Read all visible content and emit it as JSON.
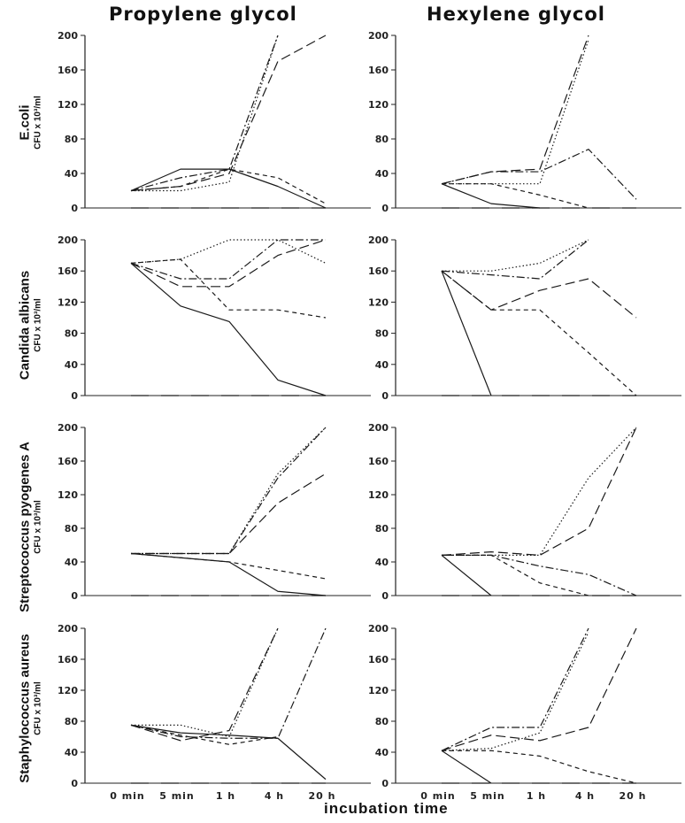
{
  "columns": [
    "Propylene glycol",
    "Hexylene glycol"
  ],
  "row_labels": [
    {
      "organism": "E.coli",
      "unit": "CFU x 10³/ml"
    },
    {
      "organism": "Candida albicans",
      "unit": "CFU x 10³/ml"
    },
    {
      "organism": "Streptococcus pyogenes A",
      "unit": "CFU x 10³/ml"
    },
    {
      "organism": "Staphylococcus aureus",
      "unit": "CFU x 10³/ml"
    }
  ],
  "xlabel": "incubation time",
  "chart_data": {
    "type": "line",
    "x_ticks": [
      "0 min",
      "5 min",
      "1 h",
      "4 h",
      "20 h"
    ],
    "y_ticks": [
      0,
      40,
      80,
      120,
      160,
      200
    ],
    "ylim": [
      0,
      200
    ],
    "panels": [
      {
        "row": "E.coli",
        "column": "Propylene glycol",
        "series": [
          {
            "style": "solid",
            "values": [
              20,
              45,
              45,
              25,
              0
            ]
          },
          {
            "style": "dash",
            "values": [
              20,
              25,
              40,
              170,
              200
            ]
          },
          {
            "style": "dashdot",
            "values": [
              20,
              35,
              45,
              200,
              null
            ]
          },
          {
            "style": "dot",
            "values": [
              20,
              20,
              30,
              200,
              null
            ]
          },
          {
            "style": "shortdash",
            "values": [
              20,
              25,
              45,
              35,
              5
            ]
          },
          {
            "style": "longdash",
            "values": [
              0,
              0,
              0,
              0,
              0
            ]
          }
        ]
      },
      {
        "row": "E.coli",
        "column": "Hexylene glycol",
        "series": [
          {
            "style": "solid",
            "values": [
              28,
              5,
              0,
              null,
              null
            ]
          },
          {
            "style": "dash",
            "values": [
              28,
              42,
              45,
              200,
              null
            ]
          },
          {
            "style": "dashdot",
            "values": [
              28,
              42,
              42,
              68,
              10
            ]
          },
          {
            "style": "dot",
            "values": [
              28,
              28,
              28,
              195,
              null
            ]
          },
          {
            "style": "shortdash",
            "values": [
              28,
              28,
              15,
              0,
              null
            ]
          },
          {
            "style": "longdash",
            "values": [
              0,
              0,
              0,
              0,
              0
            ]
          }
        ]
      },
      {
        "row": "Candida albicans",
        "column": "Propylene glycol",
        "series": [
          {
            "style": "solid",
            "values": [
              170,
              115,
              95,
              20,
              0
            ]
          },
          {
            "style": "dash",
            "values": [
              170,
              140,
              140,
              180,
              200
            ]
          },
          {
            "style": "dashdot",
            "values": [
              170,
              150,
              150,
              200,
              200
            ]
          },
          {
            "style": "dot",
            "values": [
              170,
              175,
              200,
              200,
              170
            ]
          },
          {
            "style": "shortdash",
            "values": [
              170,
              175,
              110,
              110,
              100
            ]
          },
          {
            "style": "longdash",
            "values": [
              0,
              0,
              0,
              0,
              0
            ]
          }
        ]
      },
      {
        "row": "Candida albicans",
        "column": "Hexylene glycol",
        "series": [
          {
            "style": "solid",
            "values": [
              160,
              0,
              null,
              null,
              null
            ]
          },
          {
            "style": "dash",
            "values": [
              160,
              110,
              135,
              150,
              100
            ]
          },
          {
            "style": "dashdot",
            "values": [
              160,
              155,
              150,
              200,
              null
            ]
          },
          {
            "style": "dot",
            "values": [
              160,
              160,
              170,
              200,
              null
            ]
          },
          {
            "style": "shortdash",
            "values": [
              160,
              110,
              110,
              55,
              0
            ]
          },
          {
            "style": "longdash",
            "values": [
              0,
              0,
              0,
              0,
              0
            ]
          }
        ]
      },
      {
        "row": "Streptococcus pyogenes A",
        "column": "Propylene glycol",
        "series": [
          {
            "style": "solid",
            "values": [
              50,
              45,
              40,
              5,
              0
            ]
          },
          {
            "style": "dash",
            "values": [
              50,
              50,
              50,
              110,
              145
            ]
          },
          {
            "style": "dashdot",
            "values": [
              50,
              50,
              50,
              140,
              200
            ]
          },
          {
            "style": "dot",
            "values": [
              50,
              50,
              50,
              145,
              200
            ]
          },
          {
            "style": "shortdash",
            "values": [
              50,
              45,
              40,
              30,
              20
            ]
          },
          {
            "style": "longdash",
            "values": [
              0,
              0,
              0,
              0,
              0
            ]
          }
        ]
      },
      {
        "row": "Streptococcus pyogenes A",
        "column": "Hexylene glycol",
        "series": [
          {
            "style": "solid",
            "values": [
              48,
              0,
              null,
              null,
              null
            ]
          },
          {
            "style": "dash",
            "values": [
              48,
              52,
              48,
              80,
              200
            ]
          },
          {
            "style": "dashdot",
            "values": [
              48,
              48,
              35,
              25,
              0
            ]
          },
          {
            "style": "dot",
            "values": [
              48,
              48,
              48,
              140,
              200
            ]
          },
          {
            "style": "shortdash",
            "values": [
              48,
              48,
              15,
              0,
              null
            ]
          },
          {
            "style": "longdash",
            "values": [
              0,
              0,
              0,
              0,
              0
            ]
          }
        ]
      },
      {
        "row": "Staphylococcus aureus",
        "column": "Propylene glycol",
        "series": [
          {
            "style": "solid",
            "values": [
              75,
              65,
              62,
              58,
              5
            ]
          },
          {
            "style": "dash",
            "values": [
              75,
              55,
              68,
              200,
              null
            ]
          },
          {
            "style": "dashdot",
            "values": [
              75,
              60,
              58,
              58,
              200
            ]
          },
          {
            "style": "dot",
            "values": [
              75,
              75,
              60,
              200,
              null
            ]
          },
          {
            "style": "shortdash",
            "values": [
              75,
              62,
              50,
              60,
              null
            ]
          },
          {
            "style": "longdash",
            "values": [
              0,
              0,
              0,
              0,
              0
            ]
          }
        ]
      },
      {
        "row": "Staphylococcus aureus",
        "column": "Hexylene glycol",
        "series": [
          {
            "style": "solid",
            "values": [
              42,
              0,
              null,
              null,
              null
            ]
          },
          {
            "style": "dash",
            "values": [
              42,
              62,
              55,
              72,
              200
            ]
          },
          {
            "style": "dashdot",
            "values": [
              42,
              72,
              72,
              200,
              null
            ]
          },
          {
            "style": "dot",
            "values": [
              42,
              45,
              65,
              195,
              null
            ]
          },
          {
            "style": "shortdash",
            "values": [
              42,
              42,
              35,
              15,
              0
            ]
          },
          {
            "style": "longdash",
            "values": [
              0,
              0,
              0,
              0,
              0
            ]
          }
        ]
      }
    ]
  }
}
